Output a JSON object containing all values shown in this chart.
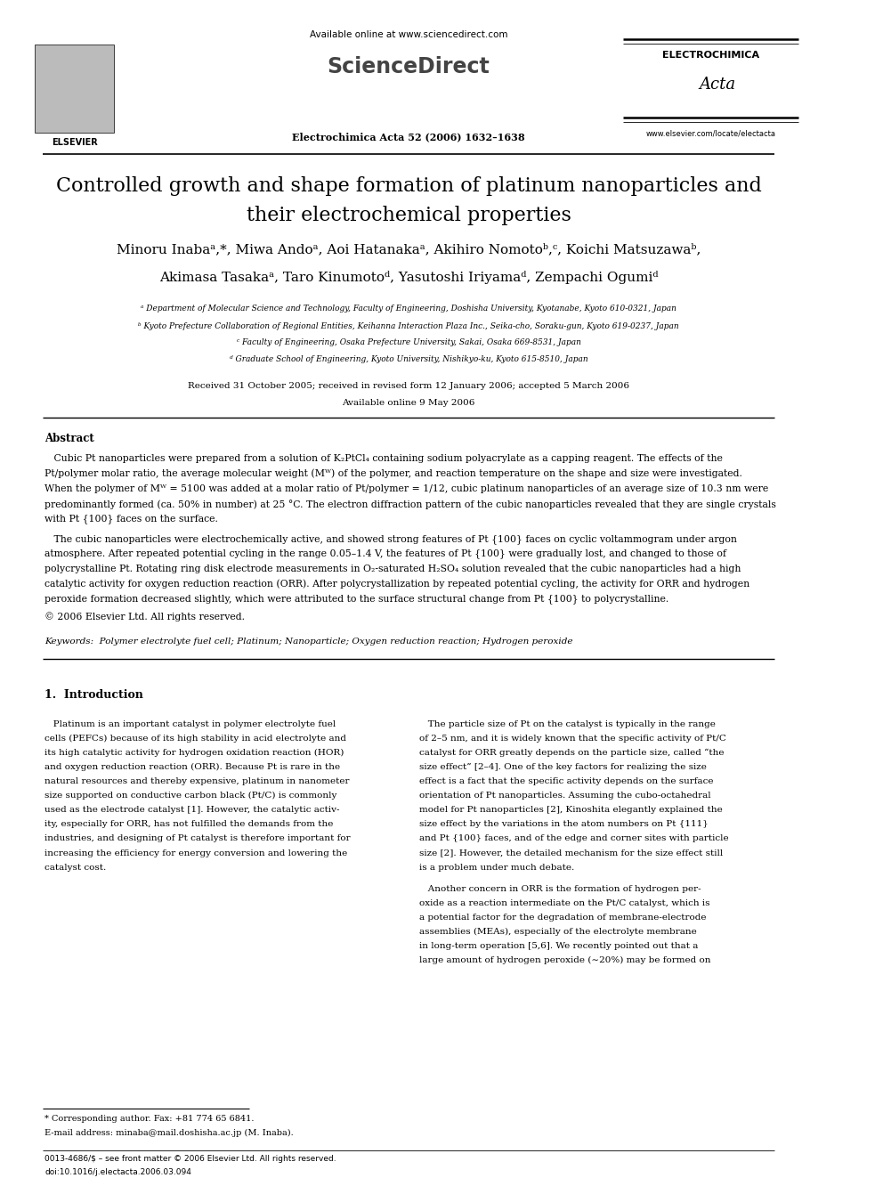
{
  "title_line1": "Controlled growth and shape formation of platinum nanoparticles and",
  "title_line2": "their electrochemical properties",
  "authors_line1": "Minoru Inabaᵃ,*, Miwa Andoᵃ, Aoi Hatanakaᵃ, Akihiro Nomotoᵇ,ᶜ, Koichi Matsuzawaᵇ,",
  "authors_line2": "Akimasa Tasakaᵃ, Taro Kinumotoᵈ, Yasutoshi Iriyamaᵈ, Zempachi Ogumiᵈ",
  "affil_a": "ᵃ Department of Molecular Science and Technology, Faculty of Engineering, Doshisha University, Kyotanabe, Kyoto 610-0321, Japan",
  "affil_b": "ᵇ Kyoto Prefecture Collaboration of Regional Entities, Keihanna Interaction Plaza Inc., Seika-cho, Soraku-gun, Kyoto 619-0237, Japan",
  "affil_c": "ᶜ Faculty of Engineering, Osaka Prefecture University, Sakai, Osaka 669-8531, Japan",
  "affil_d": "ᵈ Graduate School of Engineering, Kyoto University, Nishikyo-ku, Kyoto 615-8510, Japan",
  "received": "Received 31 October 2005; received in revised form 12 January 2006; accepted 5 March 2006",
  "available": "Available online 9 May 2006",
  "header_available": "Available online at www.sciencedirect.com",
  "journal_info": "Electrochimica Acta 52 (2006) 1632–1638",
  "journal_url": "www.elsevier.com/locate/electacta",
  "journal_name": "ELECTROCHIMICA",
  "journal_name2": "Acta",
  "elsevier": "ELSEVIER",
  "abstract_title": "Abstract",
  "abstract_copyright": "© 2006 Elsevier Ltd. All rights reserved.",
  "keywords": "Keywords:  Polymer electrolyte fuel cell; Platinum; Nanoparticle; Oxygen reduction reaction; Hydrogen peroxide",
  "intro_title": "1.  Introduction",
  "footnote_star": "* Corresponding author. Fax: +81 774 65 6841.",
  "footnote_email": "E-mail address: minaba@mail.doshisha.ac.jp (M. Inaba).",
  "footer_issn": "0013-4686/$ – see front matter © 2006 Elsevier Ltd. All rights reserved.",
  "footer_doi": "doi:10.1016/j.electacta.2006.03.094",
  "bg_color": "#ffffff",
  "text_color": "#000000",
  "line_color": "#000000",
  "abstract1_lines": [
    "   Cubic Pt nanoparticles were prepared from a solution of K₂PtCl₄ containing sodium polyacrylate as a capping reagent. The effects of the",
    "Pt/polymer molar ratio, the average molecular weight (Mᵂ) of the polymer, and reaction temperature on the shape and size were investigated.",
    "When the polymer of Mᵂ = 5100 was added at a molar ratio of Pt/polymer = 1/12, cubic platinum nanoparticles of an average size of 10.3 nm were",
    "predominantly formed (ca. 50% in number) at 25 °C. The electron diffraction pattern of the cubic nanoparticles revealed that they are single crystals",
    "with Pt {100} faces on the surface."
  ],
  "abstract2_lines": [
    "   The cubic nanoparticles were electrochemically active, and showed strong features of Pt {100} faces on cyclic voltammogram under argon",
    "atmosphere. After repeated potential cycling in the range 0.05–1.4 V, the features of Pt {100} were gradually lost, and changed to those of",
    "polycrystalline Pt. Rotating ring disk electrode measurements in O₂-saturated H₂SO₄ solution revealed that the cubic nanoparticles had a high",
    "catalytic activity for oxygen reduction reaction (ORR). After polycrystallization by repeated potential cycling, the activity for ORR and hydrogen",
    "peroxide formation decreased slightly, which were attributed to the surface structural change from Pt {100} to polycrystalline."
  ],
  "intro_col1": [
    "   Platinum is an important catalyst in polymer electrolyte fuel",
    "cells (PEFCs) because of its high stability in acid electrolyte and",
    "its high catalytic activity for hydrogen oxidation reaction (HOR)",
    "and oxygen reduction reaction (ORR). Because Pt is rare in the",
    "natural resources and thereby expensive, platinum in nanometer",
    "size supported on conductive carbon black (Pt/C) is commonly",
    "used as the electrode catalyst [1]. However, the catalytic activ-",
    "ity, especially for ORR, has not fulfilled the demands from the",
    "industries, and designing of Pt catalyst is therefore important for",
    "increasing the efficiency for energy conversion and lowering the",
    "catalyst cost."
  ],
  "intro_col2_p1": [
    "   The particle size of Pt on the catalyst is typically in the range",
    "of 2–5 nm, and it is widely known that the specific activity of Pt/C",
    "catalyst for ORR greatly depends on the particle size, called “the",
    "size effect” [2–4]. One of the key factors for realizing the size",
    "effect is a fact that the specific activity depends on the surface",
    "orientation of Pt nanoparticles. Assuming the cubo-octahedral",
    "model for Pt nanoparticles [2], Kinoshita elegantly explained the",
    "size effect by the variations in the atom numbers on Pt {111}",
    "and Pt {100} faces, and of the edge and corner sites with particle",
    "size [2]. However, the detailed mechanism for the size effect still",
    "is a problem under much debate."
  ],
  "intro_col2_p2": [
    "   Another concern in ORR is the formation of hydrogen per-",
    "oxide as a reaction intermediate on the Pt/C catalyst, which is",
    "a potential factor for the degradation of membrane-electrode",
    "assemblies (MEAs), especially of the electrolyte membrane",
    "in long-term operation [5,6]. We recently pointed out that a",
    "large amount of hydrogen peroxide (∼20%) may be formed on"
  ]
}
